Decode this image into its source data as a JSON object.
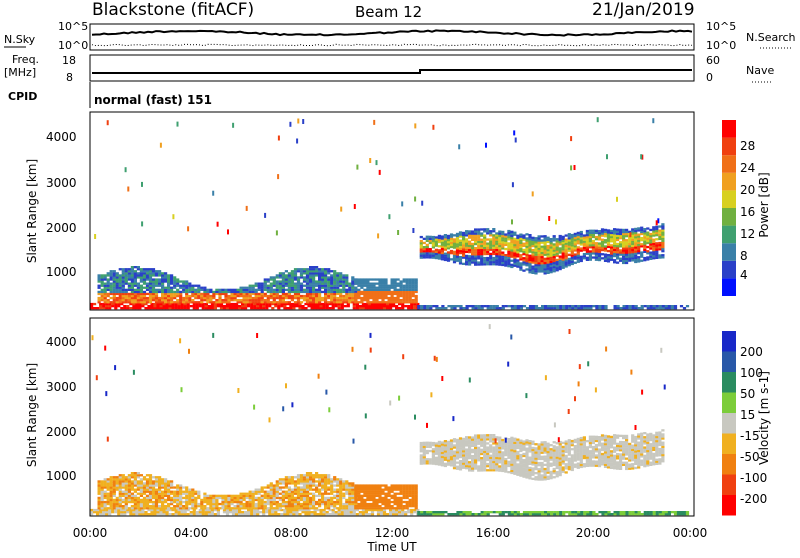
{
  "header": {
    "station": "Blackstone (fitACF)",
    "beam": "Beam 12",
    "date": "21/Jan/2019"
  },
  "top_panels": {
    "nsky_label": "N.Sky",
    "nsky_ticks": [
      "10^5",
      "10^0"
    ],
    "nsearch_label": "N.Search",
    "nsearch_ticks": [
      "10^5",
      "10^0"
    ],
    "freq_label": "Freq.",
    "freq_unit": "[MHz]",
    "freq_ticks": [
      "18",
      "8"
    ],
    "nave_label": "Nave",
    "nave_ticks": [
      "60",
      "0"
    ],
    "cpid_label": "CPID",
    "cpid_text": "normal (fast) 151"
  },
  "chart_data": [
    {
      "type": "heatmap",
      "name": "power",
      "ylabel": "Slant Range [km]",
      "yticks": [
        "1000",
        "2000",
        "3000",
        "4000"
      ],
      "ylim": [
        180,
        4500
      ],
      "xlim_hours": [
        0,
        24
      ],
      "colorbar": {
        "label": "Power [dB]",
        "ticks": [
          "4",
          "8",
          "12",
          "16",
          "20",
          "24",
          "28"
        ],
        "colors": [
          "#0010ff",
          "#2a40c8",
          "#3a80a8",
          "#3fa070",
          "#70b040",
          "#d8d020",
          "#f0a020",
          "#f07018",
          "#f04010",
          "#ff0000"
        ]
      }
    },
    {
      "type": "heatmap",
      "name": "velocity",
      "ylabel": "Slant Range [km]",
      "yticks": [
        "1000",
        "2000",
        "3000",
        "4000"
      ],
      "ylim": [
        180,
        4500
      ],
      "xlim_hours": [
        0,
        24
      ],
      "xlabel": "Time UT",
      "xticks": [
        "00:00",
        "04:00",
        "08:00",
        "12:00",
        "16:00",
        "20:00",
        "00:00"
      ],
      "colorbar": {
        "label": "Velocity [m s-1]",
        "ticks": [
          "200",
          "100",
          "50",
          "15",
          "-15",
          "-50",
          "-100",
          "-200"
        ],
        "colors": [
          "#1828c8",
          "#2858a8",
          "#2a8c60",
          "#7ccd3a",
          "#c8c8c0",
          "#f0b020",
          "#f08010",
          "#f04010",
          "#ff0000"
        ]
      }
    }
  ]
}
